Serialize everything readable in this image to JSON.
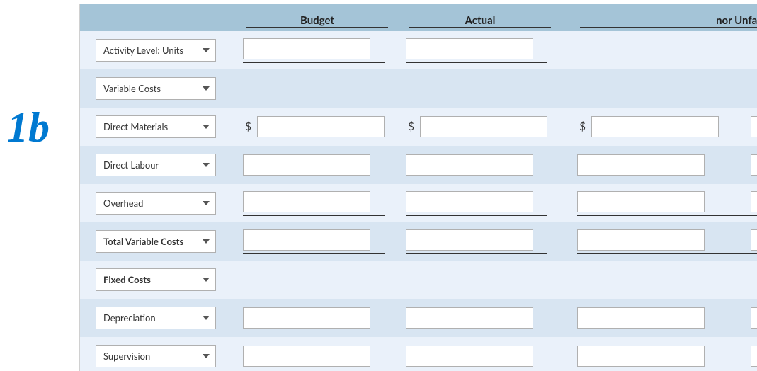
{
  "annotation": "1b",
  "headers": {
    "budget": "Budget",
    "actual": "Actual",
    "variance": "nor Unfav"
  },
  "currency": "$",
  "rows": [
    {
      "label": "Activity Level: Units",
      "bold": false,
      "inputs": {
        "col1": true,
        "col2": true,
        "col3": false
      },
      "dollars": false,
      "underline12": true,
      "underline3": false,
      "stub": false
    },
    {
      "label": "Variable Costs",
      "bold": false,
      "inputs": {
        "col1": false,
        "col2": false,
        "col3": false
      },
      "dollars": false,
      "underline12": false,
      "underline3": false,
      "stub": false
    },
    {
      "label": "Direct Materials",
      "bold": false,
      "inputs": {
        "col1": true,
        "col2": true,
        "col3": true
      },
      "dollars": true,
      "underline12": false,
      "underline3": false,
      "stub": true
    },
    {
      "label": "Direct Labour",
      "bold": false,
      "inputs": {
        "col1": true,
        "col2": true,
        "col3": true
      },
      "dollars": false,
      "underline12": false,
      "underline3": false,
      "stub": true
    },
    {
      "label": "Overhead",
      "bold": false,
      "inputs": {
        "col1": true,
        "col2": true,
        "col3": true
      },
      "dollars": false,
      "underline12": true,
      "underline3": true,
      "stub": true
    },
    {
      "label": "Total Variable Costs",
      "bold": true,
      "inputs": {
        "col1": true,
        "col2": true,
        "col3": true
      },
      "dollars": false,
      "underline12": true,
      "underline3": true,
      "stub": true
    },
    {
      "label": "Fixed Costs",
      "bold": true,
      "inputs": {
        "col1": false,
        "col2": false,
        "col3": false
      },
      "dollars": false,
      "underline12": false,
      "underline3": false,
      "stub": false
    },
    {
      "label": "Depreciation",
      "bold": false,
      "inputs": {
        "col1": true,
        "col2": true,
        "col3": true
      },
      "dollars": false,
      "underline12": false,
      "underline3": false,
      "stub": true
    },
    {
      "label": "Supervision",
      "bold": false,
      "inputs": {
        "col1": true,
        "col2": true,
        "col3": true
      },
      "dollars": false,
      "underline12": false,
      "underline3": false,
      "stub": true
    }
  ],
  "colors": {
    "header_bg": "#a4c4d7",
    "row_odd": "#eaf1fa",
    "row_even": "#d8e5f2",
    "annotation": "#0079d1",
    "border": "#b0b0b0"
  }
}
